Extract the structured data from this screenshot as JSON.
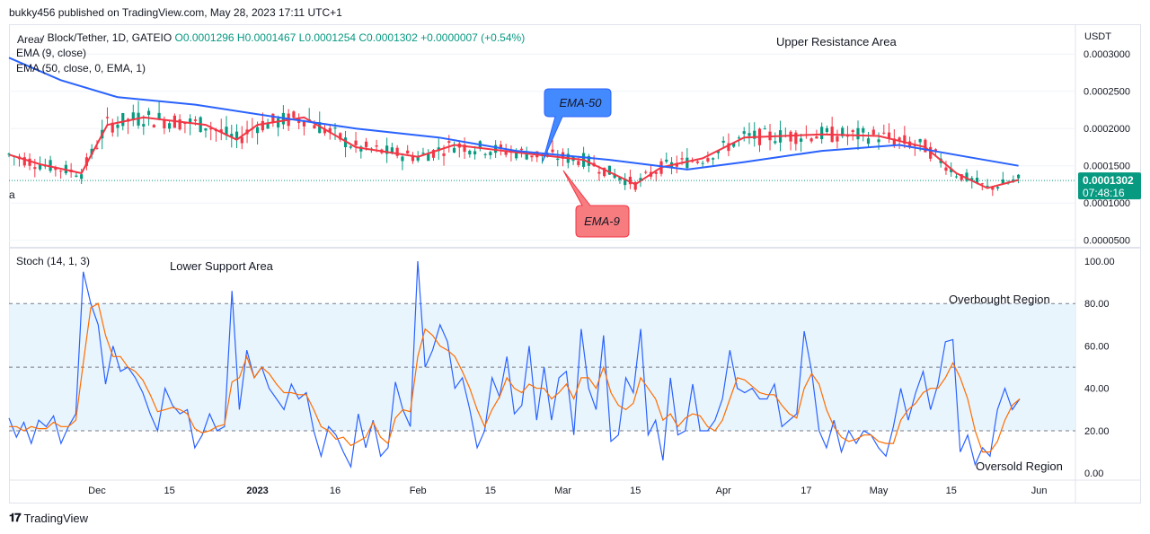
{
  "header": {
    "published": "bukky456 published on TradingView.com, May 28, 2023 17:11 UTC+1"
  },
  "legend": {
    "symbol": "Lucky Block/Tether, 1D, GATEIO",
    "ohlc": "O0.0001296 H0.0001467 L0.0001254 C0.0001302 +0.0000007 (+0.54%)",
    "overlay_area": "Area",
    "ema9": "EMA (9, close)",
    "ema50": "EMA (50, close, 0, EMA, 1)",
    "stoch": "Stoch (14, 1, 3)"
  },
  "annotations": {
    "upper_resistance": "Upper Resistance Area",
    "lower_support": "Lower Support Area",
    "overbought": "Overbought Region",
    "oversold": "Oversold Region",
    "ema50_callout": "EMA-50",
    "ema9_callout": "EMA-9",
    "left_cut": "a"
  },
  "price_axis": {
    "currency": "USDT",
    "ticks": [
      "0.0003000",
      "0.0002500",
      "0.0002000",
      "0.0001500",
      "0.0001000",
      "0.0000500"
    ],
    "last_price": "0.0001302",
    "countdown": "07:48:16"
  },
  "stoch_axis": {
    "ticks": [
      "100.00",
      "80.00",
      "60.00",
      "40.00",
      "20.00",
      "0.00"
    ]
  },
  "time_axis": {
    "ticks": [
      "Dec",
      "15",
      "2023",
      "16",
      "Feb",
      "15",
      "Mar",
      "15",
      "Apr",
      "17",
      "May",
      "15",
      "Jun"
    ]
  },
  "footer": {
    "brand": "TradingView"
  },
  "colors": {
    "up": "#089981",
    "down": "#f23645",
    "ema9": "#f23645",
    "ema50": "#2962ff",
    "stoch_k": "#2962ff",
    "stoch_d": "#ff6d00",
    "band": "#e3f2fd",
    "ema50_callout": "#448aff",
    "ema9_callout": "#f77c80"
  },
  "chart_data": [
    {
      "type": "candlestick",
      "title": "Lucky Block/Tether, 1D, GATEIO",
      "ylim": [
        4e-05,
        0.00034
      ],
      "x_range": [
        "2022-11-14",
        "2023-06-08"
      ],
      "series": [
        {
          "name": "EMA (9, close)",
          "points": [
            [
              "2022-11-14",
              0.000165
            ],
            [
              "2022-11-20",
              0.000152
            ],
            [
              "2022-11-28",
              0.00014
            ],
            [
              "2022-12-03",
              0.000205
            ],
            [
              "2022-12-10",
              0.000215
            ],
            [
              "2022-12-22",
              0.000205
            ],
            [
              "2022-12-28",
              0.000185
            ],
            [
              "2023-01-01",
              0.000205
            ],
            [
              "2023-01-10",
              0.000215
            ],
            [
              "2023-01-20",
              0.000175
            ],
            [
              "2023-02-01",
              0.000162
            ],
            [
              "2023-02-08",
              0.000178
            ],
            [
              "2023-02-20",
              0.000168
            ],
            [
              "2023-03-05",
              0.000158
            ],
            [
              "2023-03-15",
              0.000125
            ],
            [
              "2023-03-20",
              0.000148
            ],
            [
              "2023-03-28",
              0.00016
            ],
            [
              "2023-04-05",
              0.000188
            ],
            [
              "2023-04-20",
              0.000192
            ],
            [
              "2023-05-01",
              0.00019
            ],
            [
              "2023-05-10",
              0.000175
            ],
            [
              "2023-05-16",
              0.00014
            ],
            [
              "2023-05-22",
              0.00012
            ],
            [
              "2023-05-28",
              0.000131
            ]
          ]
        },
        {
          "name": "EMA (50, close, 0, EMA, 1)",
          "points": [
            [
              "2022-11-14",
              0.000295
            ],
            [
              "2022-11-24",
              0.000265
            ],
            [
              "2022-12-05",
              0.000242
            ],
            [
              "2022-12-20",
              0.000232
            ],
            [
              "2023-01-05",
              0.000215
            ],
            [
              "2023-01-20",
              0.0002
            ],
            [
              "2023-02-05",
              0.000188
            ],
            [
              "2023-02-20",
              0.00017
            ],
            [
              "2023-03-10",
              0.000158
            ],
            [
              "2023-03-25",
              0.000145
            ],
            [
              "2023-04-05",
              0.000155
            ],
            [
              "2023-04-20",
              0.00017
            ],
            [
              "2023-05-05",
              0.000178
            ],
            [
              "2023-05-18",
              0.000162
            ],
            [
              "2023-05-28",
              0.00015
            ]
          ]
        }
      ],
      "last_price": 0.0001302
    },
    {
      "type": "line",
      "title": "Stoch (14, 1, 3)",
      "ylim": [
        0,
        100
      ],
      "bands": {
        "overbought": 80,
        "middle": 50,
        "oversold": 20
      },
      "series": [
        {
          "name": "%K",
          "values": [
            26,
            17,
            24,
            14,
            25,
            22,
            27,
            14,
            22,
            28,
            95,
            80,
            70,
            42,
            60,
            48,
            50,
            45,
            38,
            28,
            20,
            40,
            32,
            28,
            30,
            12,
            18,
            28,
            20,
            22,
            86,
            30,
            58,
            45,
            50,
            40,
            35,
            30,
            42,
            35,
            38,
            20,
            8,
            22,
            18,
            10,
            3,
            28,
            12,
            25,
            8,
            12,
            43,
            30,
            22,
            100,
            50,
            58,
            70,
            62,
            40,
            45,
            30,
            12,
            20,
            45,
            36,
            55,
            28,
            32,
            60,
            25,
            50,
            25,
            45,
            48,
            18,
            68,
            40,
            30,
            65,
            15,
            18,
            45,
            38,
            68,
            18,
            25,
            6,
            45,
            18,
            20,
            42,
            20,
            20,
            25,
            35,
            58,
            40,
            38,
            40,
            35,
            35,
            42,
            22,
            25,
            28,
            67,
            48,
            20,
            12,
            25,
            10,
            20,
            14,
            20,
            18,
            12,
            8,
            22,
            40,
            25,
            38,
            48,
            30,
            42,
            62,
            63,
            10,
            18,
            4,
            12,
            8,
            30,
            40,
            30,
            35
          ]
        },
        {
          "name": "%D",
          "values": [
            22,
            22,
            20,
            22,
            21,
            21,
            24,
            22,
            22,
            25,
            52,
            78,
            80,
            65,
            55,
            55,
            50,
            48,
            44,
            37,
            29,
            30,
            31,
            30,
            28,
            21,
            19,
            20,
            22,
            23,
            43,
            45,
            55,
            45,
            50,
            47,
            42,
            38,
            38,
            37,
            37,
            30,
            22,
            20,
            16,
            17,
            13,
            15,
            17,
            24,
            17,
            14,
            26,
            30,
            29,
            55,
            68,
            65,
            60,
            58,
            55,
            48,
            40,
            30,
            22,
            30,
            36,
            45,
            40,
            38,
            42,
            40,
            40,
            35,
            38,
            42,
            35,
            45,
            45,
            40,
            50,
            38,
            32,
            30,
            33,
            45,
            40,
            35,
            25,
            28,
            22,
            26,
            28,
            27,
            22,
            20,
            25,
            35,
            45,
            44,
            41,
            38,
            37,
            37,
            32,
            28,
            26,
            40,
            47,
            42,
            30,
            22,
            17,
            15,
            16,
            18,
            18,
            15,
            14,
            14,
            25,
            30,
            33,
            38,
            40,
            40,
            45,
            52,
            45,
            35,
            20,
            10,
            10,
            15,
            25,
            32,
            35
          ]
        }
      ]
    }
  ]
}
